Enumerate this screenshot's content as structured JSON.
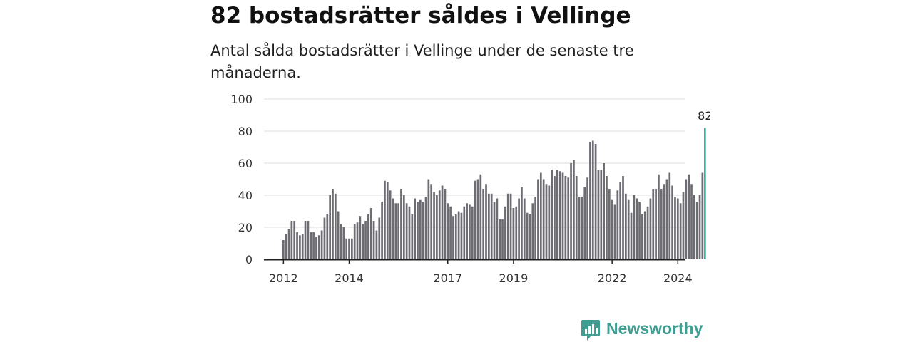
{
  "colors": {
    "bar": "#6c6c72",
    "highlight": "#1a9a8c",
    "grid": "#dcdcdc",
    "axis": "#222222",
    "brand": "#3f9d92"
  },
  "branding": {
    "name": "Newsworthy",
    "icon": "bar-chart-speech-bubble-icon"
  },
  "chart_data": {
    "type": "bar",
    "title": "82 bostadsrätter såldes i Vellinge",
    "subtitle": "Antal sålda bostadsrätter i Vellinge under de senaste tre månaderna.",
    "xlabel": "",
    "ylabel": "",
    "ylim": [
      0,
      100
    ],
    "yticks": [
      0,
      20,
      40,
      60,
      80,
      100
    ],
    "xticks": [
      2012,
      2014,
      2017,
      2019,
      2022,
      2024
    ],
    "start": "2012-01",
    "grid": true,
    "highlight_label": "82",
    "series": [
      {
        "values": [
          12,
          16,
          19,
          24,
          24,
          17,
          15,
          16,
          24,
          24,
          17,
          17,
          14,
          15,
          18,
          26,
          28,
          40,
          44,
          41,
          30,
          22,
          20,
          13,
          13,
          13,
          22,
          23,
          27,
          22,
          24,
          28,
          32,
          24,
          18,
          26,
          36,
          49,
          48,
          43,
          38,
          35,
          35,
          44,
          40,
          35,
          33,
          28,
          38,
          36,
          37,
          36,
          39,
          50,
          47,
          42,
          40,
          43,
          46,
          44,
          35,
          33,
          27,
          28,
          30,
          29,
          33,
          35,
          34,
          33,
          49,
          50,
          53,
          44,
          47,
          41,
          41,
          36,
          38,
          25,
          25,
          33,
          41,
          41,
          32,
          33,
          38,
          45,
          38,
          29,
          28,
          35,
          39,
          50,
          54,
          50,
          47,
          46,
          56,
          52,
          56,
          55,
          54,
          52,
          51,
          60,
          62,
          52,
          39,
          39,
          45,
          51,
          73,
          74,
          72,
          56,
          56,
          60,
          52,
          44,
          37,
          34,
          43,
          48,
          52,
          41,
          37,
          29,
          40,
          38,
          36,
          28,
          30,
          33,
          38,
          44,
          44,
          53,
          44,
          47,
          50,
          54,
          46,
          39,
          38,
          35,
          42,
          50,
          53,
          47,
          40,
          36,
          40,
          54,
          82
        ]
      }
    ]
  }
}
